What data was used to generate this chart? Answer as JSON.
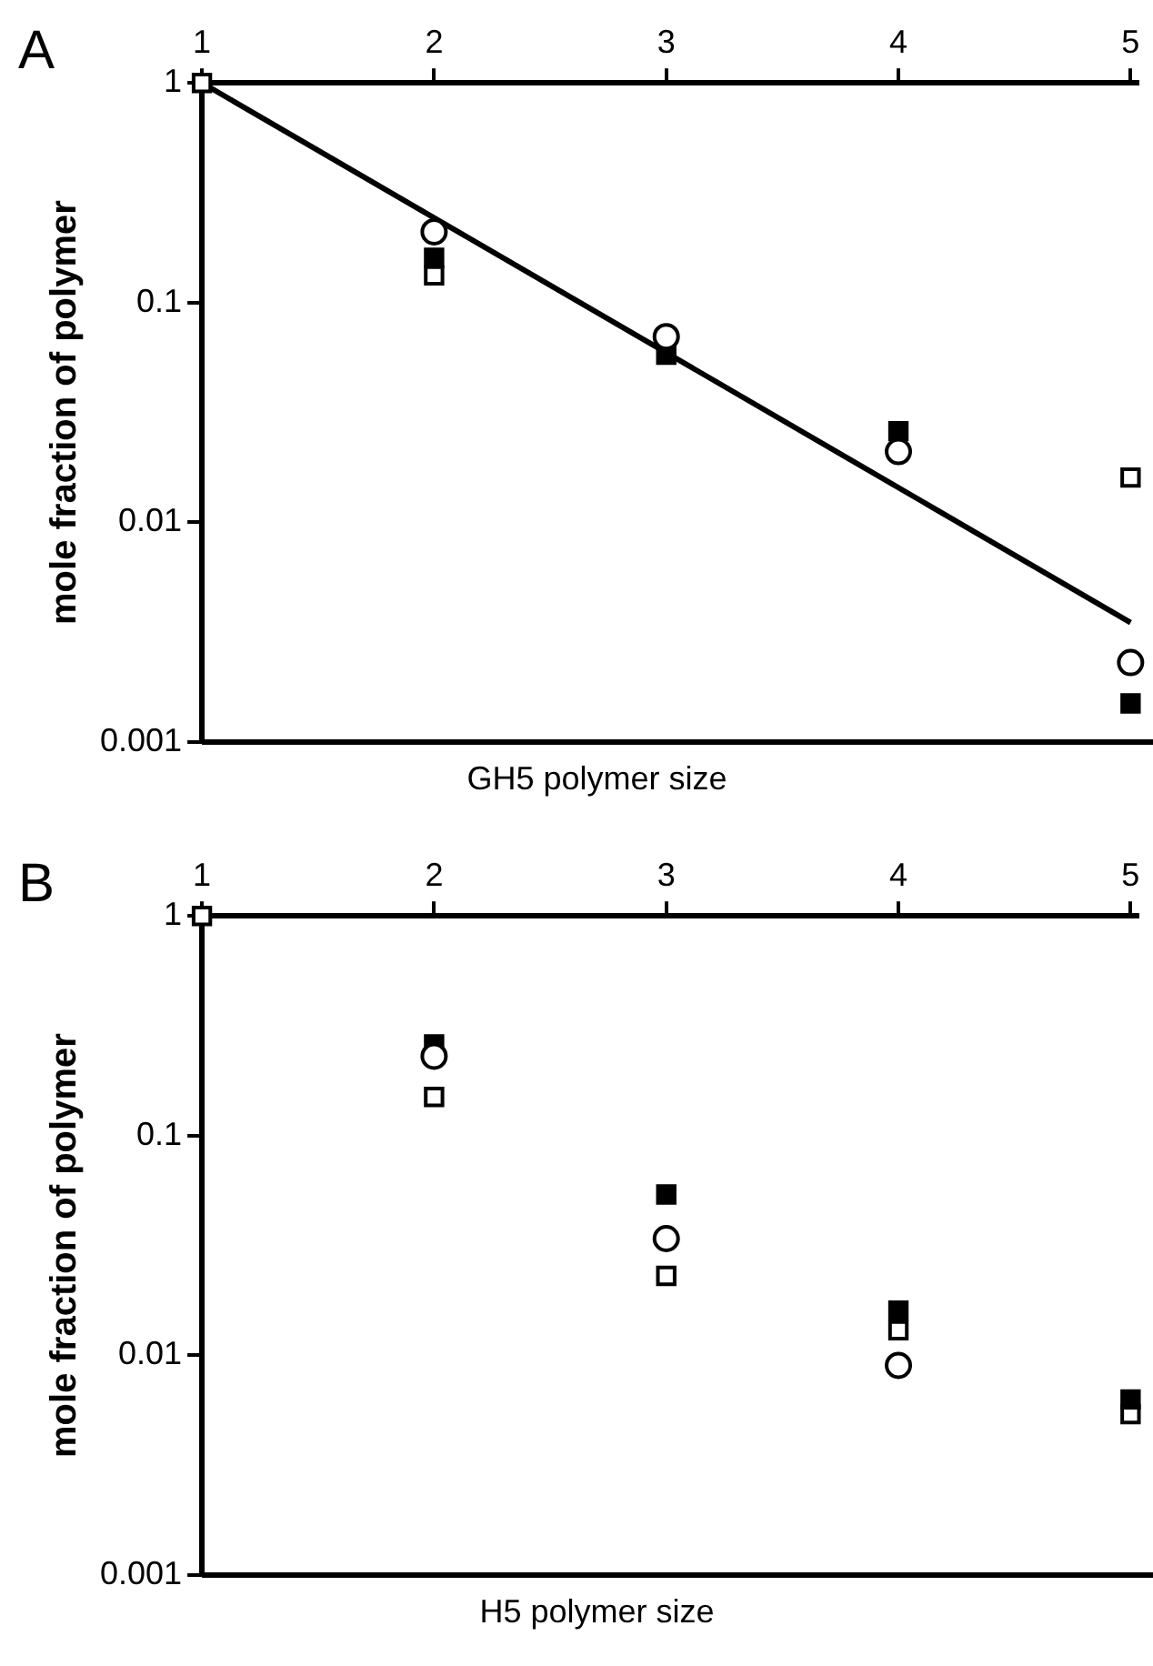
{
  "chart_data": [
    {
      "type": "scatter",
      "title": "A",
      "xlabel": "GH5 polymer size",
      "ylabel": "mole fraction of polymer",
      "x": [
        1,
        2,
        3,
        4,
        5
      ],
      "xlim": [
        1,
        5.03
      ],
      "xticks": [
        1,
        2,
        3,
        4,
        5
      ],
      "ylim": [
        0.001,
        1
      ],
      "yticks": [
        1,
        0.1,
        0.01,
        0.001
      ],
      "log": "y",
      "grid": false,
      "legend": false,
      "series": [
        {
          "color": "#ffffff",
          "marker": "circle",
          "values": [
            null,
            0.21,
            0.07,
            0.021,
            0.0023
          ]
        },
        {
          "color": "#000000",
          "marker": "square",
          "values": [
            null,
            0.16,
            0.058,
            0.026,
            0.0015
          ]
        },
        {
          "color": "#ffffff",
          "marker": "square",
          "values": [
            1,
            0.133,
            null,
            null,
            0.016
          ]
        },
        {
          "type": "line",
          "color": "#000000",
          "marker": "none",
          "x": [
            1,
            5
          ],
          "values": [
            1,
            0.0035
          ]
        }
      ]
    },
    {
      "type": "scatter",
      "title": "B",
      "xlabel": "H5 polymer size",
      "ylabel": "mole fraction of polymer",
      "x": [
        1,
        2,
        3,
        4,
        5
      ],
      "xlim": [
        1,
        5.03
      ],
      "xticks": [
        1,
        2,
        3,
        4,
        5
      ],
      "ylim": [
        0.001,
        1
      ],
      "yticks": [
        1,
        0.1,
        0.01,
        0.001
      ],
      "log": "y",
      "grid": false,
      "legend": false,
      "series": [
        {
          "color": "#ffffff",
          "marker": "circle",
          "values": [
            null,
            0.23,
            0.034,
            0.009,
            null
          ]
        },
        {
          "color": "#000000",
          "marker": "square",
          "values": [
            null,
            0.26,
            0.054,
            0.016,
            0.0063
          ]
        },
        {
          "color": "#ffffff",
          "marker": "square",
          "values": [
            1,
            0.15,
            0.023,
            0.013,
            0.0054
          ]
        }
      ]
    }
  ]
}
